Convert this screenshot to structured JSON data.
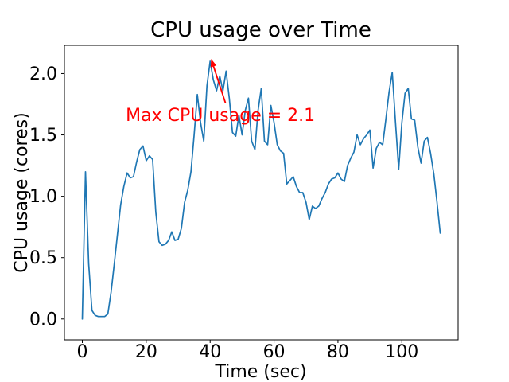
{
  "figure": {
    "background": "#ffffff"
  },
  "chart_data": {
    "type": "line",
    "title": "CPU usage over Time",
    "xlabel": "Time (sec)",
    "ylabel": "CPU usage (cores)",
    "line_color": "#1f77b4",
    "grid": false,
    "legend": "none",
    "x_start": 0,
    "x_step": 1,
    "x_ticks": [
      0,
      20,
      40,
      60,
      80,
      100
    ],
    "y_ticks": [
      0.0,
      0.5,
      1.0,
      1.5,
      2.0
    ],
    "xlim": [
      -5.6,
      117.6
    ],
    "ylim": [
      -0.17,
      2.23
    ],
    "values": [
      0.0,
      1.2,
      0.45,
      0.07,
      0.03,
      0.02,
      0.02,
      0.02,
      0.04,
      0.22,
      0.45,
      0.69,
      0.93,
      1.08,
      1.19,
      1.15,
      1.16,
      1.28,
      1.38,
      1.41,
      1.29,
      1.33,
      1.3,
      0.87,
      0.63,
      0.6,
      0.61,
      0.64,
      0.71,
      0.64,
      0.65,
      0.74,
      0.95,
      1.05,
      1.2,
      1.5,
      1.83,
      1.6,
      1.45,
      1.9,
      2.1,
      1.95,
      1.86,
      1.98,
      1.86,
      2.02,
      1.8,
      1.52,
      1.49,
      1.66,
      1.5,
      1.7,
      1.8,
      1.45,
      1.38,
      1.7,
      1.88,
      1.45,
      1.42,
      1.74,
      1.6,
      1.42,
      1.37,
      1.35,
      1.1,
      1.13,
      1.16,
      1.08,
      1.03,
      1.03,
      0.95,
      0.81,
      0.92,
      0.9,
      0.92,
      0.98,
      1.03,
      1.1,
      1.14,
      1.15,
      1.19,
      1.14,
      1.12,
      1.25,
      1.31,
      1.36,
      1.5,
      1.42,
      1.47,
      1.5,
      1.54,
      1.23,
      1.39,
      1.44,
      1.42,
      1.63,
      1.85,
      2.01,
      1.6,
      1.22,
      1.6,
      1.84,
      1.88,
      1.63,
      1.62,
      1.4,
      1.27,
      1.45,
      1.48,
      1.35,
      1.18,
      0.95,
      0.7
    ],
    "max_value": 2.1,
    "max_time": 40,
    "annotation": {
      "text": "Max CPU usage = 2.1",
      "color": "#ff0000",
      "xy": [
        40,
        2.1
      ],
      "text_pos": [
        13.6,
        1.615
      ],
      "arrow_start": [
        44.8,
        1.76
      ],
      "arrow_end": [
        40.3,
        2.12
      ]
    }
  }
}
